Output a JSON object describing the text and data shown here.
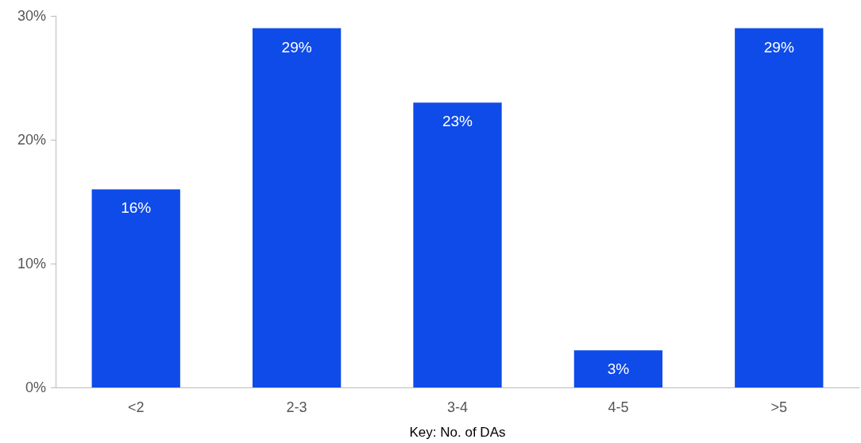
{
  "chart_data": {
    "type": "bar",
    "xlabel": "Key: No. of DAs",
    "categories": [
      "<2",
      "2-3",
      "3-4",
      "4-5",
      ">5"
    ],
    "values": [
      16,
      29,
      23,
      3,
      29
    ],
    "value_labels": [
      "16%",
      "29%",
      "23%",
      "3%",
      "29%"
    ],
    "color": "#0f4be8",
    "ylim": [
      0,
      30
    ],
    "yticks": [
      {
        "value": 0,
        "label": "0%"
      },
      {
        "value": 10,
        "label": "10%"
      },
      {
        "value": 20,
        "label": "20%"
      },
      {
        "value": 30,
        "label": "30%"
      }
    ],
    "grid": false
  }
}
